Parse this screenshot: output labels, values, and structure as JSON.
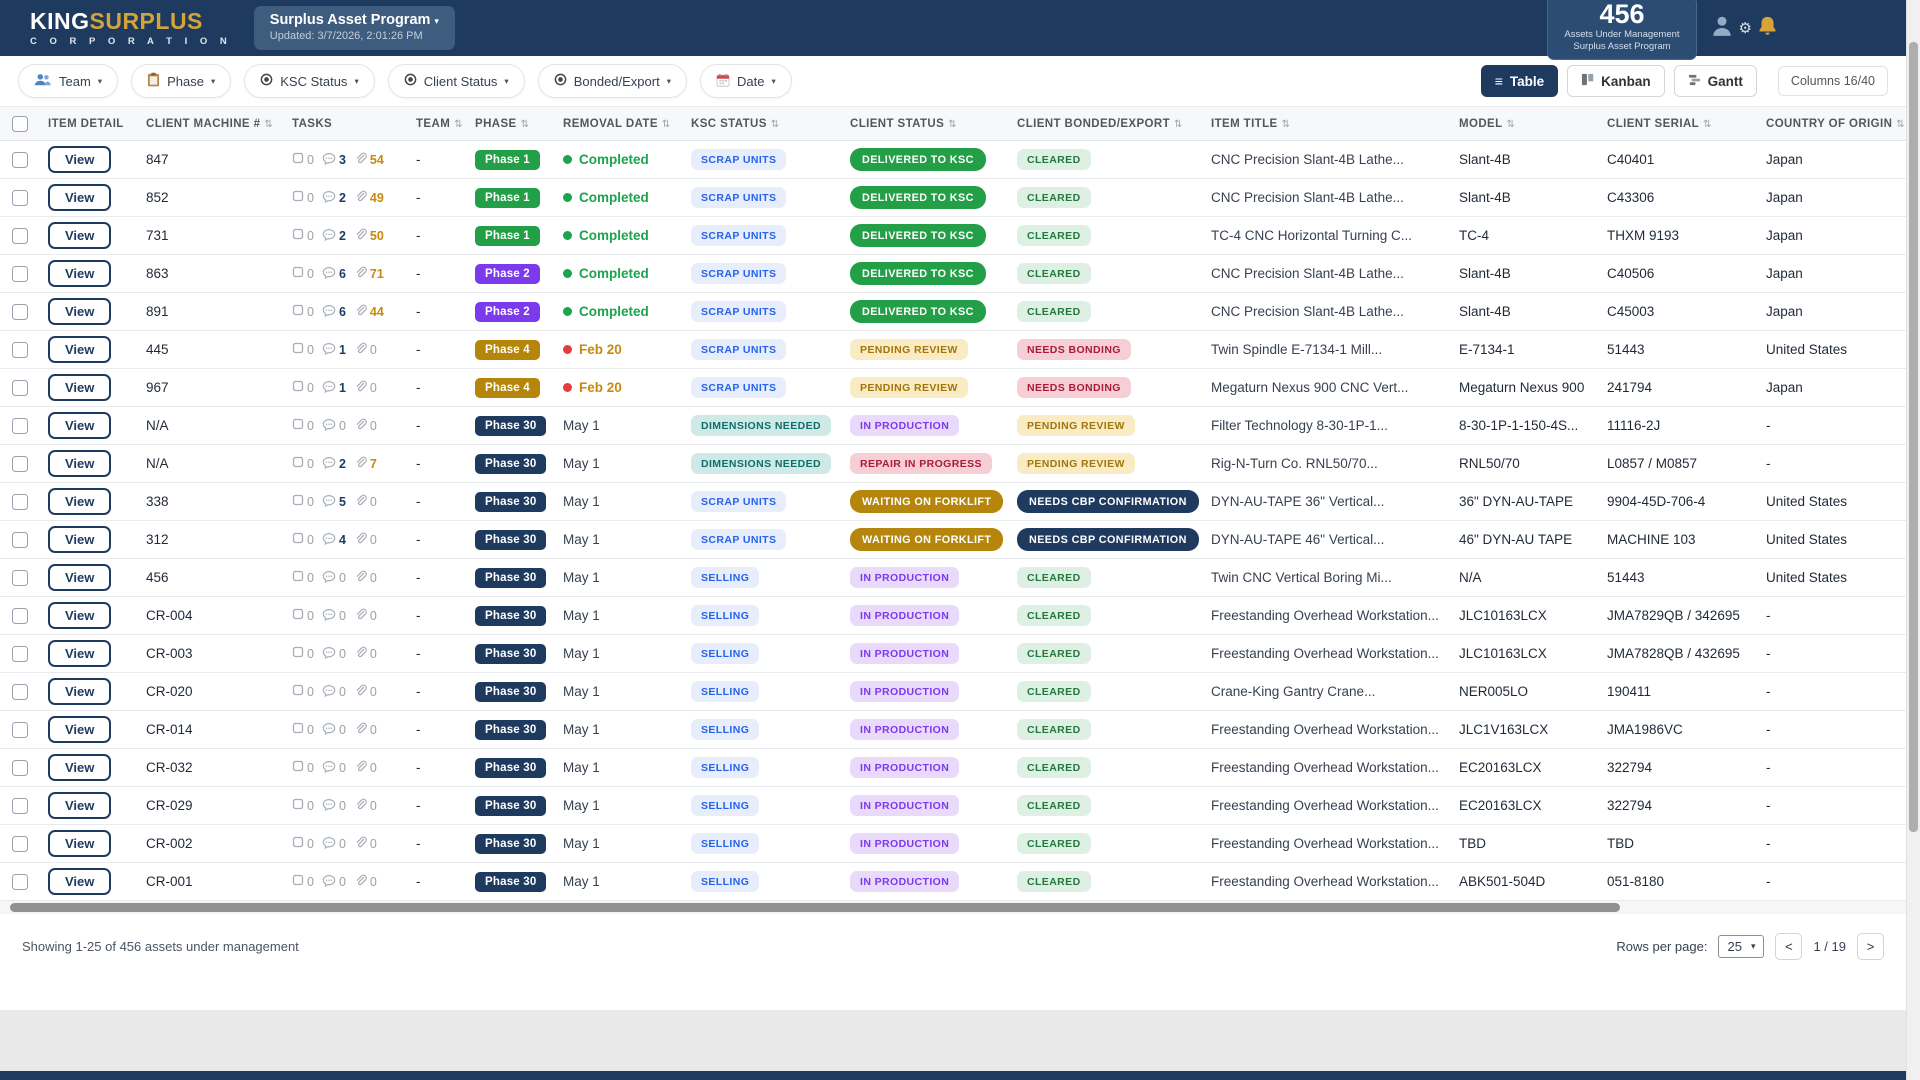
{
  "header": {
    "brand": {
      "king": "KING",
      "surplus": "SURPLUS",
      "corporation": "C O R P O R A T I O N"
    },
    "program": {
      "title": "Surplus Asset Program",
      "updated": "Updated: 3/7/2026, 2:01:26 PM"
    },
    "stats": {
      "count": "456",
      "line1": "Assets Under Management",
      "line2": "Surplus Asset Program"
    }
  },
  "icons": {
    "caret": "▾",
    "sort": "⇅",
    "table_view": "≡",
    "select_caret": "▾"
  },
  "filters": [
    {
      "label": "Team",
      "icon": "team-icon"
    },
    {
      "label": "Phase",
      "icon": "clipboard-icon"
    },
    {
      "label": "KSC Status",
      "icon": "status-target-icon"
    },
    {
      "label": "Client Status",
      "icon": "status-target-icon"
    },
    {
      "label": "Bonded/Export",
      "icon": "status-target-icon"
    },
    {
      "label": "Date",
      "icon": "calendar-icon"
    }
  ],
  "views": {
    "table": "Table",
    "kanban": "Kanban",
    "gantt": "Gantt",
    "columns": "Columns 16/40"
  },
  "colors": {
    "navy": "#1e3a5f",
    "brand_gold": "#d3a439",
    "badges": {
      "green": {
        "bg": "#23a047",
        "fg": "#ffffff"
      },
      "purple": {
        "bg": "#7c3aed",
        "fg": "#ffffff"
      },
      "gold": {
        "bg": "#b5860b",
        "fg": "#ffffff"
      },
      "navy": {
        "bg": "#1e3a5f",
        "fg": "#ffffff"
      },
      "blue": {
        "bg": "#e7edfb",
        "fg": "#2563eb"
      },
      "teal": {
        "bg": "#cfe9e7",
        "fg": "#0e6f6a"
      },
      "yellow": {
        "bg": "#f9ecc4",
        "fg": "#a3750a"
      },
      "purplelt": {
        "bg": "#e9dafc",
        "fg": "#7c3aed"
      },
      "greenlt": {
        "bg": "#def0e3",
        "fg": "#217a3c"
      },
      "pink": {
        "bg": "#f6cfd6",
        "fg": "#a91b36"
      }
    },
    "removal": {
      "completed": {
        "dot": "#1da24e",
        "text": "#1da24e"
      },
      "overdue": {
        "dot": "#e23d3d",
        "text": "#c9880e"
      },
      "scheduled": {
        "text": "#374151"
      }
    },
    "tasks": {
      "zero": "#9aa1ab",
      "comments": "#1c3d66",
      "attachments": "#c9880e"
    }
  },
  "table": {
    "view_label": "View",
    "columns": [
      {
        "label": "ITEM DETAIL",
        "sortable": false
      },
      {
        "label": "CLIENT MACHINE #",
        "sortable": true
      },
      {
        "label": "TASKS",
        "sortable": false
      },
      {
        "label": "TEAM",
        "sortable": true
      },
      {
        "label": "PHASE",
        "sortable": true
      },
      {
        "label": "REMOVAL DATE",
        "sortable": true
      },
      {
        "label": "KSC STATUS",
        "sortable": true
      },
      {
        "label": "CLIENT STATUS",
        "sortable": true
      },
      {
        "label": "CLIENT BONDED/EXPORT",
        "sortable": true
      },
      {
        "label": "ITEM TITLE",
        "sortable": true
      },
      {
        "label": "MODEL",
        "sortable": true
      },
      {
        "label": "CLIENT SERIAL",
        "sortable": true
      },
      {
        "label": "COUNTRY OF ORIGIN",
        "sortable": true
      }
    ],
    "rows": [
      {
        "machine": "847",
        "tasks": [
          "0",
          "3",
          "54"
        ],
        "team": "-",
        "phase": [
          "Phase 1",
          "green"
        ],
        "removal": [
          "Completed",
          "completed"
        ],
        "ksc": [
          "SCRAP UNITS",
          "blue"
        ],
        "client": [
          "DELIVERED TO KSC",
          "green"
        ],
        "bonded": [
          "CLEARED",
          "greenlt"
        ],
        "title": "CNC Precision Slant-4B Lathe...",
        "model": "Slant-4B",
        "serial": "C40401",
        "country": "Japan"
      },
      {
        "machine": "852",
        "tasks": [
          "0",
          "2",
          "49"
        ],
        "team": "-",
        "phase": [
          "Phase 1",
          "green"
        ],
        "removal": [
          "Completed",
          "completed"
        ],
        "ksc": [
          "SCRAP UNITS",
          "blue"
        ],
        "client": [
          "DELIVERED TO KSC",
          "green"
        ],
        "bonded": [
          "CLEARED",
          "greenlt"
        ],
        "title": "CNC Precision Slant-4B Lathe...",
        "model": "Slant-4B",
        "serial": "C43306",
        "country": "Japan"
      },
      {
        "machine": "731",
        "tasks": [
          "0",
          "2",
          "50"
        ],
        "team": "-",
        "phase": [
          "Phase 1",
          "green"
        ],
        "removal": [
          "Completed",
          "completed"
        ],
        "ksc": [
          "SCRAP UNITS",
          "blue"
        ],
        "client": [
          "DELIVERED TO KSC",
          "green"
        ],
        "bonded": [
          "CLEARED",
          "greenlt"
        ],
        "title": "TC-4 CNC Horizontal Turning C...",
        "model": "TC-4",
        "serial": "THXM 9193",
        "country": "Japan"
      },
      {
        "machine": "863",
        "tasks": [
          "0",
          "6",
          "71"
        ],
        "team": "-",
        "phase": [
          "Phase 2",
          "purple"
        ],
        "removal": [
          "Completed",
          "completed"
        ],
        "ksc": [
          "SCRAP UNITS",
          "blue"
        ],
        "client": [
          "DELIVERED TO KSC",
          "green"
        ],
        "bonded": [
          "CLEARED",
          "greenlt"
        ],
        "title": "CNC Precision Slant-4B Lathe...",
        "model": "Slant-4B",
        "serial": "C40506",
        "country": "Japan"
      },
      {
        "machine": "891",
        "tasks": [
          "0",
          "6",
          "44"
        ],
        "team": "-",
        "phase": [
          "Phase 2",
          "purple"
        ],
        "removal": [
          "Completed",
          "completed"
        ],
        "ksc": [
          "SCRAP UNITS",
          "blue"
        ],
        "client": [
          "DELIVERED TO KSC",
          "green"
        ],
        "bonded": [
          "CLEARED",
          "greenlt"
        ],
        "title": "CNC Precision Slant-4B Lathe...",
        "model": "Slant-4B",
        "serial": "C45003",
        "country": "Japan"
      },
      {
        "machine": "445",
        "tasks": [
          "0",
          "1",
          "0"
        ],
        "team": "-",
        "phase": [
          "Phase 4",
          "gold"
        ],
        "removal": [
          "Feb 20",
          "overdue"
        ],
        "ksc": [
          "SCRAP UNITS",
          "blue"
        ],
        "client": [
          "PENDING REVIEW",
          "yellow"
        ],
        "bonded": [
          "NEEDS BONDING",
          "pink"
        ],
        "title": "Twin Spindle E-7134-1 Mill...",
        "model": "E-7134-1",
        "serial": "51443",
        "country": "United States"
      },
      {
        "machine": "967",
        "tasks": [
          "0",
          "1",
          "0"
        ],
        "team": "-",
        "phase": [
          "Phase 4",
          "gold"
        ],
        "removal": [
          "Feb 20",
          "overdue"
        ],
        "ksc": [
          "SCRAP UNITS",
          "blue"
        ],
        "client": [
          "PENDING REVIEW",
          "yellow"
        ],
        "bonded": [
          "NEEDS BONDING",
          "pink"
        ],
        "title": "Megaturn Nexus 900 CNC Vert...",
        "model": "Megaturn Nexus 900",
        "serial": "241794",
        "country": "Japan"
      },
      {
        "machine": "N/A",
        "tasks": [
          "0",
          "0",
          "0"
        ],
        "team": "-",
        "phase": [
          "Phase 30",
          "navy"
        ],
        "removal": [
          "May 1",
          "scheduled"
        ],
        "ksc": [
          "DIMENSIONS NEEDED",
          "teal"
        ],
        "client": [
          "IN PRODUCTION",
          "purplelt"
        ],
        "bonded": [
          "PENDING REVIEW",
          "yellow"
        ],
        "title": "Filter Technology 8-30-1P-1...",
        "model": "8-30-1P-1-150-4S...",
        "serial": "11116-2J",
        "country": "-"
      },
      {
        "machine": "N/A",
        "tasks": [
          "0",
          "2",
          "7"
        ],
        "team": "-",
        "phase": [
          "Phase 30",
          "navy"
        ],
        "removal": [
          "May 1",
          "scheduled"
        ],
        "ksc": [
          "DIMENSIONS NEEDED",
          "teal"
        ],
        "client": [
          "REPAIR IN PROGRESS",
          "pink"
        ],
        "bonded": [
          "PENDING REVIEW",
          "yellow"
        ],
        "title": "Rig-N-Turn Co. RNL50/70...",
        "model": "RNL50/70",
        "serial": "L0857 / M0857",
        "country": "-"
      },
      {
        "machine": "338",
        "tasks": [
          "0",
          "5",
          "0"
        ],
        "team": "-",
        "phase": [
          "Phase 30",
          "navy"
        ],
        "removal": [
          "May 1",
          "scheduled"
        ],
        "ksc": [
          "SCRAP UNITS",
          "blue"
        ],
        "client": [
          "WAITING ON FORKLIFT",
          "gold"
        ],
        "bonded": [
          "NEEDS CBP CONFIRMATION",
          "navy"
        ],
        "title": "DYN-AU-TAPE 36\" Vertical...",
        "model": "36\" DYN-AU-TAPE",
        "serial": "9904-45D-706-4",
        "country": "United States"
      },
      {
        "machine": "312",
        "tasks": [
          "0",
          "4",
          "0"
        ],
        "team": "-",
        "phase": [
          "Phase 30",
          "navy"
        ],
        "removal": [
          "May 1",
          "scheduled"
        ],
        "ksc": [
          "SCRAP UNITS",
          "blue"
        ],
        "client": [
          "WAITING ON FORKLIFT",
          "gold"
        ],
        "bonded": [
          "NEEDS CBP CONFIRMATION",
          "navy"
        ],
        "title": "DYN-AU-TAPE 46\" Vertical...",
        "model": "46\" DYN-AU TAPE",
        "serial": "MACHINE 103",
        "country": "United States"
      },
      {
        "machine": "456",
        "tasks": [
          "0",
          "0",
          "0"
        ],
        "team": "-",
        "phase": [
          "Phase 30",
          "navy"
        ],
        "removal": [
          "May 1",
          "scheduled"
        ],
        "ksc": [
          "SELLING",
          "blue"
        ],
        "client": [
          "IN PRODUCTION",
          "purplelt"
        ],
        "bonded": [
          "CLEARED",
          "greenlt"
        ],
        "title": "Twin CNC Vertical Boring Mi...",
        "model": "N/A",
        "serial": "51443",
        "country": "United States"
      },
      {
        "machine": "CR-004",
        "tasks": [
          "0",
          "0",
          "0"
        ],
        "team": "-",
        "phase": [
          "Phase 30",
          "navy"
        ],
        "removal": [
          "May 1",
          "scheduled"
        ],
        "ksc": [
          "SELLING",
          "blue"
        ],
        "client": [
          "IN PRODUCTION",
          "purplelt"
        ],
        "bonded": [
          "CLEARED",
          "greenlt"
        ],
        "title": "Freestanding Overhead Workstation...",
        "model": "JLC10163LCX",
        "serial": "JMA7829QB / 342695",
        "country": "-"
      },
      {
        "machine": "CR-003",
        "tasks": [
          "0",
          "0",
          "0"
        ],
        "team": "-",
        "phase": [
          "Phase 30",
          "navy"
        ],
        "removal": [
          "May 1",
          "scheduled"
        ],
        "ksc": [
          "SELLING",
          "blue"
        ],
        "client": [
          "IN PRODUCTION",
          "purplelt"
        ],
        "bonded": [
          "CLEARED",
          "greenlt"
        ],
        "title": "Freestanding Overhead Workstation...",
        "model": "JLC10163LCX",
        "serial": "JMA7828QB / 432695",
        "country": "-"
      },
      {
        "machine": "CR-020",
        "tasks": [
          "0",
          "0",
          "0"
        ],
        "team": "-",
        "phase": [
          "Phase 30",
          "navy"
        ],
        "removal": [
          "May 1",
          "scheduled"
        ],
        "ksc": [
          "SELLING",
          "blue"
        ],
        "client": [
          "IN PRODUCTION",
          "purplelt"
        ],
        "bonded": [
          "CLEARED",
          "greenlt"
        ],
        "title": "Crane-King Gantry Crane...",
        "model": "NER005LO",
        "serial": "190411",
        "country": "-"
      },
      {
        "machine": "CR-014",
        "tasks": [
          "0",
          "0",
          "0"
        ],
        "team": "-",
        "phase": [
          "Phase 30",
          "navy"
        ],
        "removal": [
          "May 1",
          "scheduled"
        ],
        "ksc": [
          "SELLING",
          "blue"
        ],
        "client": [
          "IN PRODUCTION",
          "purplelt"
        ],
        "bonded": [
          "CLEARED",
          "greenlt"
        ],
        "title": "Freestanding Overhead Workstation...",
        "model": "JLC1V163LCX",
        "serial": "JMA1986VC",
        "country": "-"
      },
      {
        "machine": "CR-032",
        "tasks": [
          "0",
          "0",
          "0"
        ],
        "team": "-",
        "phase": [
          "Phase 30",
          "navy"
        ],
        "removal": [
          "May 1",
          "scheduled"
        ],
        "ksc": [
          "SELLING",
          "blue"
        ],
        "client": [
          "IN PRODUCTION",
          "purplelt"
        ],
        "bonded": [
          "CLEARED",
          "greenlt"
        ],
        "title": "Freestanding Overhead Workstation...",
        "model": "EC20163LCX",
        "serial": "322794",
        "country": "-"
      },
      {
        "machine": "CR-029",
        "tasks": [
          "0",
          "0",
          "0"
        ],
        "team": "-",
        "phase": [
          "Phase 30",
          "navy"
        ],
        "removal": [
          "May 1",
          "scheduled"
        ],
        "ksc": [
          "SELLING",
          "blue"
        ],
        "client": [
          "IN PRODUCTION",
          "purplelt"
        ],
        "bonded": [
          "CLEARED",
          "greenlt"
        ],
        "title": "Freestanding Overhead Workstation...",
        "model": "EC20163LCX",
        "serial": "322794",
        "country": "-"
      },
      {
        "machine": "CR-002",
        "tasks": [
          "0",
          "0",
          "0"
        ],
        "team": "-",
        "phase": [
          "Phase 30",
          "navy"
        ],
        "removal": [
          "May 1",
          "scheduled"
        ],
        "ksc": [
          "SELLING",
          "blue"
        ],
        "client": [
          "IN PRODUCTION",
          "purplelt"
        ],
        "bonded": [
          "CLEARED",
          "greenlt"
        ],
        "title": "Freestanding Overhead Workstation...",
        "model": "TBD",
        "serial": "TBD",
        "country": "-"
      },
      {
        "machine": "CR-001",
        "tasks": [
          "0",
          "0",
          "0"
        ],
        "team": "-",
        "phase": [
          "Phase 30",
          "navy"
        ],
        "removal": [
          "May 1",
          "scheduled"
        ],
        "ksc": [
          "SELLING",
          "blue"
        ],
        "client": [
          "IN PRODUCTION",
          "purplelt"
        ],
        "bonded": [
          "CLEARED",
          "greenlt"
        ],
        "title": "Freestanding Overhead Workstation...",
        "model": "ABK501-504D",
        "serial": "051-8180",
        "country": "-"
      }
    ]
  },
  "footer": {
    "showing": "Showing 1-25 of 456 assets under management",
    "rows_per_page_label": "Rows per page:",
    "rows_per_page_value": "25",
    "prev": "<",
    "page_indicator": "1 / 19",
    "next": ">"
  }
}
